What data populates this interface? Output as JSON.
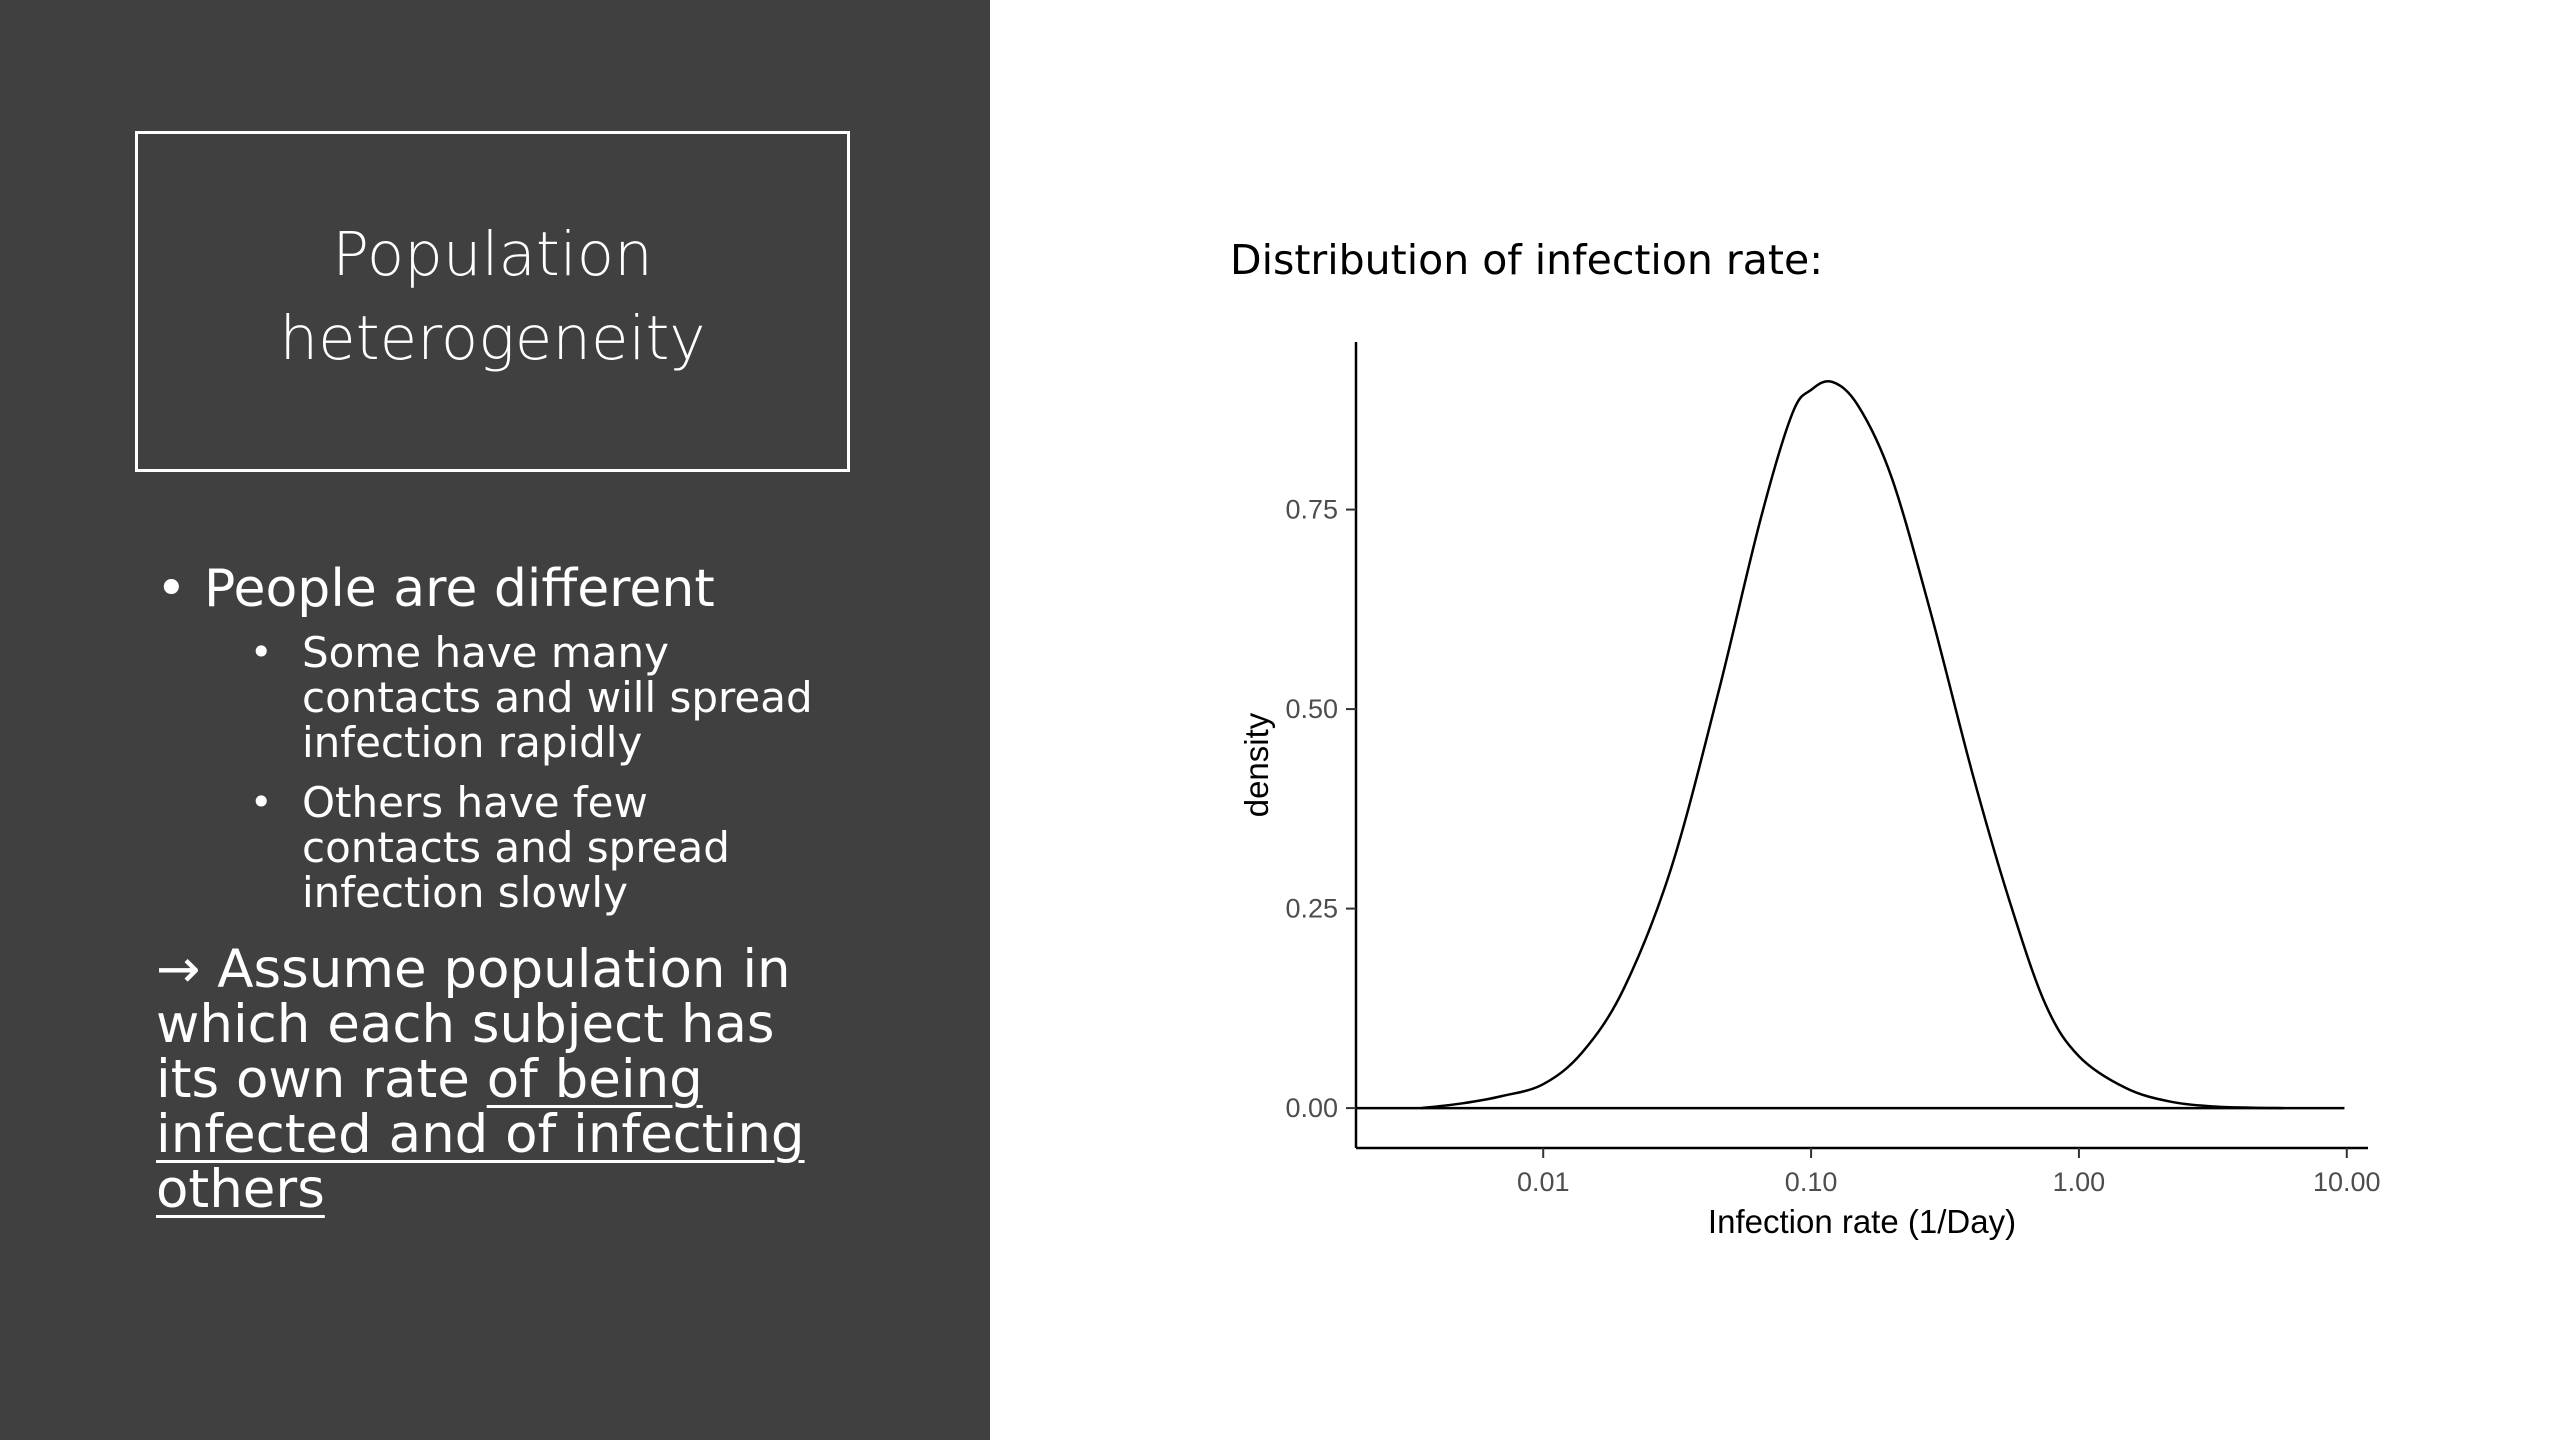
{
  "slide": {
    "title_line1": "Population",
    "title_line2": "heterogeneity",
    "bullet_glyph": "•",
    "bullet_main": "People are different",
    "sub_bullets": [
      {
        "lines": [
          "Some have many",
          "contacts and will spread",
          "infection rapidly"
        ]
      },
      {
        "lines": [
          "Others have few",
          "contacts and spread",
          "infection slowly"
        ]
      }
    ],
    "arrow_icon": "→",
    "assume": {
      "line1": "Assume population in",
      "line2": "which each subject has",
      "line3_plain": "its own rate ",
      "line3_underlined": "of being",
      "line4": "infected and of infecting",
      "line5": "others"
    },
    "chart_heading": "Distribution of infection rate:"
  },
  "chart_data": {
    "type": "line",
    "title": "",
    "xlabel": "Infection rate (1/Day)",
    "ylabel": "density",
    "x_scale": "log10",
    "xlim": [
      0.002,
      12
    ],
    "ylim": [
      -0.05,
      0.96
    ],
    "x_ticks": [
      0.01,
      0.1,
      1,
      10
    ],
    "x_tick_labels": [
      "0.01",
      "0.10",
      "1.00",
      "10.00"
    ],
    "y_ticks": [
      0,
      0.25,
      0.5,
      0.75
    ],
    "y_tick_labels": [
      "0.00",
      "0.25",
      "0.50",
      "0.75"
    ],
    "grid": false,
    "legend": "none",
    "line_color": "#000000",
    "series": [
      {
        "x": [
          0.0035,
          0.005,
          0.007,
          0.01,
          0.014,
          0.02,
          0.03,
          0.045,
          0.065,
          0.085,
          0.1,
          0.12,
          0.15,
          0.2,
          0.28,
          0.4,
          0.55,
          0.75,
          1.0,
          1.5,
          2.2,
          3.2,
          4.5,
          5.8
        ],
        "y": [
          0.0,
          0.006,
          0.015,
          0.03,
          0.07,
          0.15,
          0.3,
          0.52,
          0.74,
          0.87,
          0.9,
          0.91,
          0.88,
          0.79,
          0.62,
          0.42,
          0.26,
          0.13,
          0.065,
          0.025,
          0.008,
          0.002,
          0.0005,
          0.0
        ]
      }
    ],
    "baseline": {
      "x": [
        0.002,
        9.8
      ],
      "y": [
        0,
        0
      ]
    }
  }
}
